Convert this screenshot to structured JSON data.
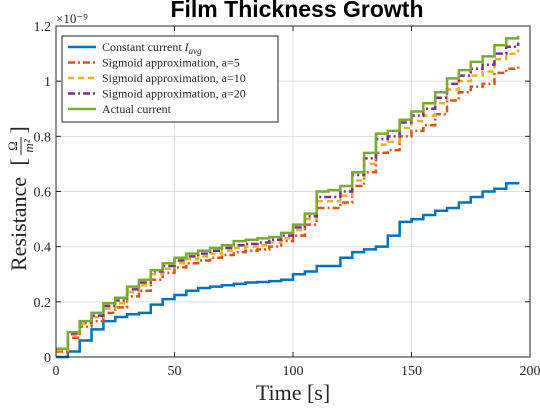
{
  "chart_data": {
    "type": "line",
    "title": "Film Thickness Growth",
    "xlabel": "Time [s]",
    "ylabel_main": "Resistance",
    "ylabel_unit_num": "Ω",
    "ylabel_unit_den": "m²",
    "y_exponent_label": "×10⁻⁹",
    "xlim": [
      0,
      200
    ],
    "ylim": [
      0,
      1.2
    ],
    "y_scale_factor": 1e-09,
    "xticks": [
      0,
      50,
      100,
      150,
      200
    ],
    "yticks": [
      0,
      0.2,
      0.4,
      0.6,
      0.8,
      1,
      1.2
    ],
    "ytick_labels": [
      "0",
      "0.2",
      "0.4",
      "0.6",
      "0.8",
      "1",
      "1.2"
    ],
    "legend_position": "top-left",
    "grid": true,
    "step": true,
    "series": [
      {
        "name": "Constant current I_avg",
        "legend_label": "Constant current ",
        "legend_italic_part": "I",
        "legend_subscript": "avg",
        "color": "#0072BD",
        "dash": "solid",
        "x": [
          0,
          5,
          10,
          15,
          20,
          25,
          30,
          35,
          40,
          45,
          50,
          55,
          60,
          65,
          70,
          75,
          80,
          85,
          90,
          95,
          100,
          105,
          110,
          115,
          120,
          125,
          130,
          135,
          140,
          145,
          150,
          155,
          160,
          165,
          170,
          175,
          180,
          185,
          190,
          195
        ],
        "y": [
          0,
          0.02,
          0.06,
          0.1,
          0.13,
          0.145,
          0.155,
          0.16,
          0.19,
          0.21,
          0.225,
          0.24,
          0.25,
          0.255,
          0.26,
          0.265,
          0.27,
          0.272,
          0.275,
          0.28,
          0.3,
          0.31,
          0.33,
          0.33,
          0.36,
          0.38,
          0.39,
          0.4,
          0.44,
          0.49,
          0.5,
          0.515,
          0.53,
          0.54,
          0.56,
          0.58,
          0.6,
          0.61,
          0.63,
          0.635
        ]
      },
      {
        "name": "Sigmoid approximation, a=5",
        "legend_label": "Sigmoid approximation, a=5",
        "color": "#D95319",
        "dash": "dashdot",
        "x": [
          0,
          5,
          10,
          15,
          20,
          25,
          30,
          35,
          40,
          45,
          50,
          55,
          60,
          65,
          70,
          75,
          80,
          85,
          90,
          95,
          100,
          105,
          110,
          115,
          120,
          125,
          130,
          135,
          140,
          145,
          150,
          155,
          160,
          165,
          170,
          175,
          180,
          185,
          190,
          195
        ],
        "y": [
          0.02,
          0.07,
          0.11,
          0.13,
          0.16,
          0.18,
          0.22,
          0.24,
          0.28,
          0.305,
          0.325,
          0.34,
          0.35,
          0.36,
          0.37,
          0.38,
          0.385,
          0.39,
          0.4,
          0.42,
          0.44,
          0.48,
          0.54,
          0.54,
          0.56,
          0.62,
          0.67,
          0.74,
          0.75,
          0.8,
          0.82,
          0.84,
          0.88,
          0.93,
          0.96,
          0.98,
          0.99,
          1.03,
          1.045,
          1.055
        ]
      },
      {
        "name": "Sigmoid approximation, a=10",
        "legend_label": "Sigmoid approximation, a=10",
        "color": "#EDB120",
        "dash": "dashed",
        "x": [
          0,
          5,
          10,
          15,
          20,
          25,
          30,
          35,
          40,
          45,
          50,
          55,
          60,
          65,
          70,
          75,
          80,
          85,
          90,
          95,
          100,
          105,
          110,
          115,
          120,
          125,
          130,
          135,
          140,
          145,
          150,
          155,
          160,
          165,
          170,
          175,
          180,
          185,
          190,
          195
        ],
        "y": [
          0.025,
          0.08,
          0.12,
          0.145,
          0.175,
          0.195,
          0.235,
          0.26,
          0.3,
          0.32,
          0.34,
          0.355,
          0.365,
          0.375,
          0.385,
          0.395,
          0.4,
          0.405,
          0.415,
          0.43,
          0.46,
          0.5,
          0.565,
          0.565,
          0.585,
          0.64,
          0.7,
          0.77,
          0.78,
          0.83,
          0.855,
          0.875,
          0.92,
          0.97,
          1.0,
          1.02,
          1.035,
          1.08,
          1.1,
          1.115
        ]
      },
      {
        "name": "Sigmoid approximation, a=20",
        "legend_label": "Sigmoid approximation, a=20",
        "color": "#7E2F8E",
        "dash": "dashdot",
        "x": [
          0,
          5,
          10,
          15,
          20,
          25,
          30,
          35,
          40,
          45,
          50,
          55,
          60,
          65,
          70,
          75,
          80,
          85,
          90,
          95,
          100,
          105,
          110,
          115,
          120,
          125,
          130,
          135,
          140,
          145,
          150,
          155,
          160,
          165,
          170,
          175,
          180,
          185,
          190,
          195
        ],
        "y": [
          0.03,
          0.085,
          0.125,
          0.15,
          0.185,
          0.205,
          0.245,
          0.27,
          0.31,
          0.33,
          0.35,
          0.365,
          0.375,
          0.385,
          0.395,
          0.405,
          0.41,
          0.415,
          0.425,
          0.44,
          0.47,
          0.51,
          0.58,
          0.58,
          0.6,
          0.66,
          0.72,
          0.79,
          0.8,
          0.85,
          0.875,
          0.9,
          0.94,
          0.99,
          1.02,
          1.045,
          1.06,
          1.1,
          1.125,
          1.14
        ]
      },
      {
        "name": "Actual current",
        "legend_label": "Actual current",
        "color": "#77AC30",
        "dash": "solid",
        "x": [
          0,
          5,
          10,
          15,
          20,
          25,
          30,
          35,
          40,
          45,
          50,
          55,
          60,
          65,
          70,
          75,
          80,
          85,
          90,
          95,
          100,
          105,
          110,
          115,
          120,
          125,
          130,
          135,
          140,
          145,
          150,
          155,
          160,
          165,
          170,
          175,
          180,
          185,
          190,
          195
        ],
        "y": [
          0.03,
          0.09,
          0.13,
          0.16,
          0.195,
          0.215,
          0.255,
          0.28,
          0.315,
          0.34,
          0.36,
          0.375,
          0.385,
          0.395,
          0.405,
          0.42,
          0.425,
          0.43,
          0.435,
          0.45,
          0.48,
          0.52,
          0.6,
          0.605,
          0.62,
          0.67,
          0.74,
          0.81,
          0.82,
          0.86,
          0.89,
          0.92,
          0.96,
          1.01,
          1.04,
          1.07,
          1.09,
          1.13,
          1.155,
          1.165
        ]
      }
    ]
  }
}
